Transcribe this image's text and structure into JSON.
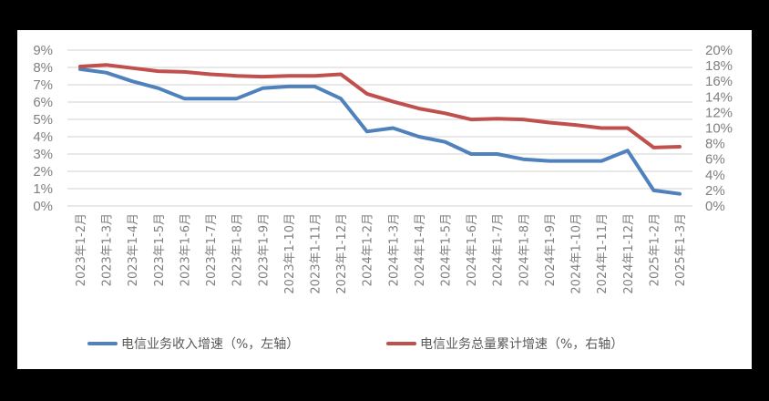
{
  "chart_data": {
    "type": "line",
    "title": "",
    "xlabel": "",
    "ylabel": "",
    "categories": [
      "2023年1-2月",
      "2023年1-3月",
      "2023年1-4月",
      "2023年1-5月",
      "2023年1-6月",
      "2023年1-7月",
      "2023年1-8月",
      "2023年1-9月",
      "2023年1-10月",
      "2023年1-11月",
      "2023年1-12月",
      "2024年1-2月",
      "2024年1-3月",
      "2024年1-4月",
      "2024年1-5月",
      "2024年1-6月",
      "2024年1-7月",
      "2024年1-8月",
      "2024年1-9月",
      "2024年1-10月",
      "2024年1-11月",
      "2024年1-12月",
      "2025年1-2月",
      "2025年1-3月"
    ],
    "series": [
      {
        "name": "电信业务收入增速（%，左轴）",
        "axis": "left",
        "color": "#4f81bd",
        "values": [
          7.9,
          7.7,
          7.2,
          6.8,
          6.2,
          6.2,
          6.2,
          6.8,
          6.9,
          6.9,
          6.2,
          4.3,
          4.5,
          4.0,
          3.7,
          3.0,
          3.0,
          2.7,
          2.6,
          2.6,
          2.6,
          3.2,
          0.9,
          0.7
        ]
      },
      {
        "name": "电信业务总量累计增速（%，右轴）",
        "axis": "right",
        "color": "#c0504d",
        "values": [
          17.9,
          18.1,
          17.7,
          17.3,
          17.2,
          16.9,
          16.7,
          16.6,
          16.7,
          16.7,
          16.9,
          14.4,
          13.4,
          12.5,
          11.9,
          11.1,
          11.2,
          11.1,
          10.7,
          10.4,
          10.0,
          10.0,
          7.5,
          7.6
        ]
      }
    ],
    "left_axis": {
      "ylim": [
        0,
        9
      ],
      "ticks": [
        "0%",
        "1%",
        "2%",
        "3%",
        "4%",
        "5%",
        "6%",
        "7%",
        "8%",
        "9%"
      ]
    },
    "right_axis": {
      "ylim": [
        0,
        20
      ],
      "ticks": [
        "0%",
        "2%",
        "4%",
        "6%",
        "8%",
        "10%",
        "12%",
        "14%",
        "16%",
        "18%",
        "20%"
      ]
    },
    "grid": true,
    "legend_position": "bottom"
  },
  "legend": {
    "items": [
      {
        "label": "电信业务收入增速（%，左轴）",
        "color": "#4f81bd"
      },
      {
        "label": "电信业务总量累计增速（%，右轴）",
        "color": "#c0504d"
      }
    ]
  }
}
